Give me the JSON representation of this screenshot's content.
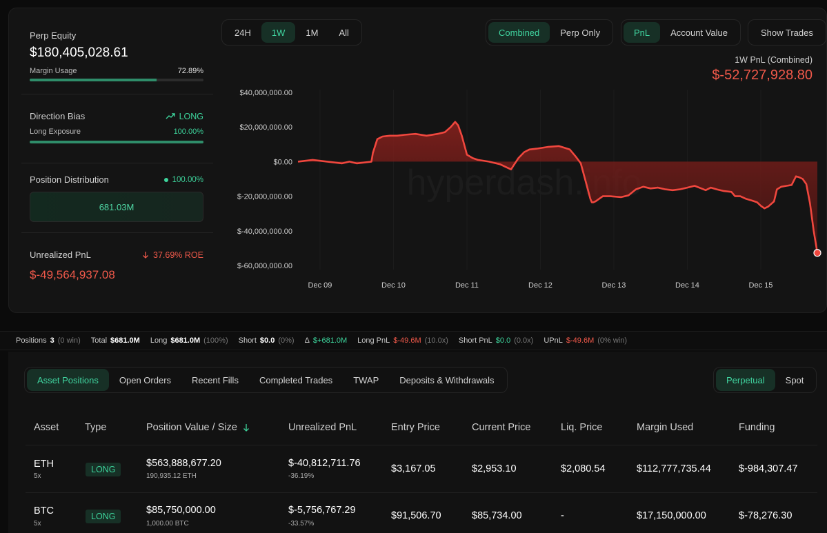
{
  "left": {
    "perp_equity_label": "Perp Equity",
    "perp_equity_value": "$180,405,028.61",
    "margin_usage_label": "Margin Usage",
    "margin_usage_value": "72.89%",
    "margin_usage_fraction": 0.7289,
    "direction_bias_label": "Direction Bias",
    "direction_bias_value": "LONG",
    "long_exposure_label": "Long Exposure",
    "long_exposure_value": "100.00%",
    "long_exposure_fraction": 1.0,
    "position_distribution_label": "Position Distribution",
    "position_distribution_value": "100.00%",
    "position_distribution_amount": "681.03M",
    "unrealized_pnl_label": "Unrealized PnL",
    "unrealized_pnl_roe": "37.69% ROE",
    "unrealized_pnl_value": "$-49,564,937.08"
  },
  "controls": {
    "timeframes": [
      "24H",
      "1W",
      "1M",
      "All"
    ],
    "timeframe_active": "1W",
    "scope": [
      "Combined",
      "Perp Only"
    ],
    "scope_active": "Combined",
    "metric": [
      "PnL",
      "Account Value"
    ],
    "metric_active": "PnL",
    "show_trades": "Show Trades"
  },
  "chart_header": {
    "title": "1W PnL (Combined)",
    "value": "$-52,727,928.80"
  },
  "watermark": "hyperdash.info",
  "chart_data": {
    "type": "area",
    "title": "1W PnL (Combined)",
    "xlabel": "",
    "ylabel": "",
    "ylim": [
      -60000000,
      40000000
    ],
    "yticks": [
      40000000,
      20000000,
      0,
      -20000000,
      -40000000,
      -60000000
    ],
    "ytick_labels": [
      "$40,000,000.00",
      "$20,000,000.00",
      "$0.00",
      "$-20,000,000.00",
      "$-40,000,000.00",
      "$-60,000,000.00"
    ],
    "xtick_labels": [
      "Dec 09",
      "Dec 10",
      "Dec 11",
      "Dec 12",
      "Dec 13",
      "Dec 14",
      "Dec 15"
    ],
    "xlim": [
      8.7,
      15.77
    ],
    "grid": "vertical",
    "line_color": "#f0473e",
    "fill_color": "#7a1d1a",
    "series": [
      {
        "x": [
          8.7,
          8.9,
          9.1,
          9.3,
          9.4,
          9.5,
          9.6,
          9.7,
          9.72,
          9.78,
          9.85,
          9.95,
          10.05,
          10.15,
          10.3,
          10.45,
          10.6,
          10.7,
          10.78,
          10.84,
          10.88,
          10.93,
          11.0,
          11.08,
          11.15,
          11.3,
          11.45,
          11.55,
          11.6,
          11.7,
          11.78,
          11.85,
          11.95,
          12.1,
          12.25,
          12.4,
          12.48,
          12.55,
          12.62,
          12.68,
          12.7,
          12.72,
          12.75,
          12.85,
          12.95,
          13.1,
          13.2,
          13.3,
          13.4,
          13.5,
          13.6,
          13.7,
          13.8,
          13.9,
          14.0,
          14.1,
          14.25,
          14.32,
          14.4,
          14.5,
          14.6,
          14.65,
          14.72,
          14.8,
          14.88,
          14.95,
          15.0,
          15.05,
          15.1,
          15.18,
          15.22,
          15.28,
          15.35,
          15.42,
          15.48,
          15.52,
          15.57,
          15.62,
          15.67,
          15.72,
          15.77
        ],
        "y": [
          0,
          1000000,
          0,
          -1000000,
          0,
          -1000000,
          -500000,
          0,
          5000000,
          13000000,
          14500000,
          15000000,
          15000000,
          15500000,
          16000000,
          15000000,
          16000000,
          17000000,
          20000000,
          23000000,
          21000000,
          15000000,
          4000000,
          2000000,
          1000000,
          0,
          -1500000,
          -3500000,
          -4500000,
          2000000,
          5500000,
          7000000,
          7500000,
          8500000,
          9000000,
          7000000,
          3000000,
          -1000000,
          -12000000,
          -21500000,
          -23500000,
          -23500000,
          -23000000,
          -20000000,
          -20000000,
          -20500000,
          -19500000,
          -16000000,
          -14500000,
          -15500000,
          -15000000,
          -16000000,
          -16500000,
          -16000000,
          -15000000,
          -14000000,
          -16500000,
          -15000000,
          -16000000,
          -17000000,
          -17500000,
          -20000000,
          -20000000,
          -21500000,
          -22500000,
          -23500000,
          -25500000,
          -27000000,
          -26000000,
          -23000000,
          -16000000,
          -14500000,
          -14000000,
          -13500000,
          -8500000,
          -9000000,
          -10000000,
          -13000000,
          -24000000,
          -40000000,
          -52727928.8
        ]
      }
    ]
  },
  "summary": {
    "positions_label": "Positions",
    "positions_value": "3",
    "positions_note": "(0 win)",
    "total_label": "Total",
    "total_value": "$681.0M",
    "long_label": "Long",
    "long_value": "$681.0M",
    "long_note": "(100%)",
    "short_label": "Short",
    "short_value": "$0.0",
    "short_note": "(0%)",
    "delta_label": "Δ",
    "delta_value": "$+681.0M",
    "long_pnl_label": "Long PnL",
    "long_pnl_value": "$-49.6M",
    "long_pnl_note": "(10.0x)",
    "short_pnl_label": "Short PnL",
    "short_pnl_value": "$0.0",
    "short_pnl_note": "(0.0x)",
    "upnl_label": "UPnL",
    "upnl_value": "$-49.6M",
    "upnl_note": "(0% win)"
  },
  "tabs": [
    "Asset Positions",
    "Open Orders",
    "Recent Fills",
    "Completed Trades",
    "TWAP",
    "Deposits & Withdrawals"
  ],
  "tab_active": "Asset Positions",
  "market_tabs": [
    "Perpetual",
    "Spot"
  ],
  "market_tab_active": "Perpetual",
  "table": {
    "headers": [
      "Asset",
      "Type",
      "Position Value / Size",
      "Unrealized PnL",
      "Entry Price",
      "Current Price",
      "Liq. Price",
      "Margin Used",
      "Funding"
    ],
    "rows": [
      {
        "asset": "ETH",
        "leverage": "5x",
        "type": "LONG",
        "value": "$563,888,677.20",
        "size": "190,935.12 ETH",
        "pnl": "$-40,812,711.76",
        "pnl_pct": "-36.19%",
        "entry": "$3,167.05",
        "current": "$2,953.10",
        "liq": "$2,080.54",
        "margin": "$112,777,735.44",
        "funding": "$-984,307.47"
      },
      {
        "asset": "BTC",
        "leverage": "5x",
        "type": "LONG",
        "value": "$85,750,000.00",
        "size": "1,000.00 BTC",
        "pnl": "$-5,756,767.29",
        "pnl_pct": "-33.57%",
        "entry": "$91,506.70",
        "current": "$85,734.00",
        "liq": "-",
        "margin": "$17,150,000.00",
        "funding": "$-78,276.30"
      }
    ]
  }
}
